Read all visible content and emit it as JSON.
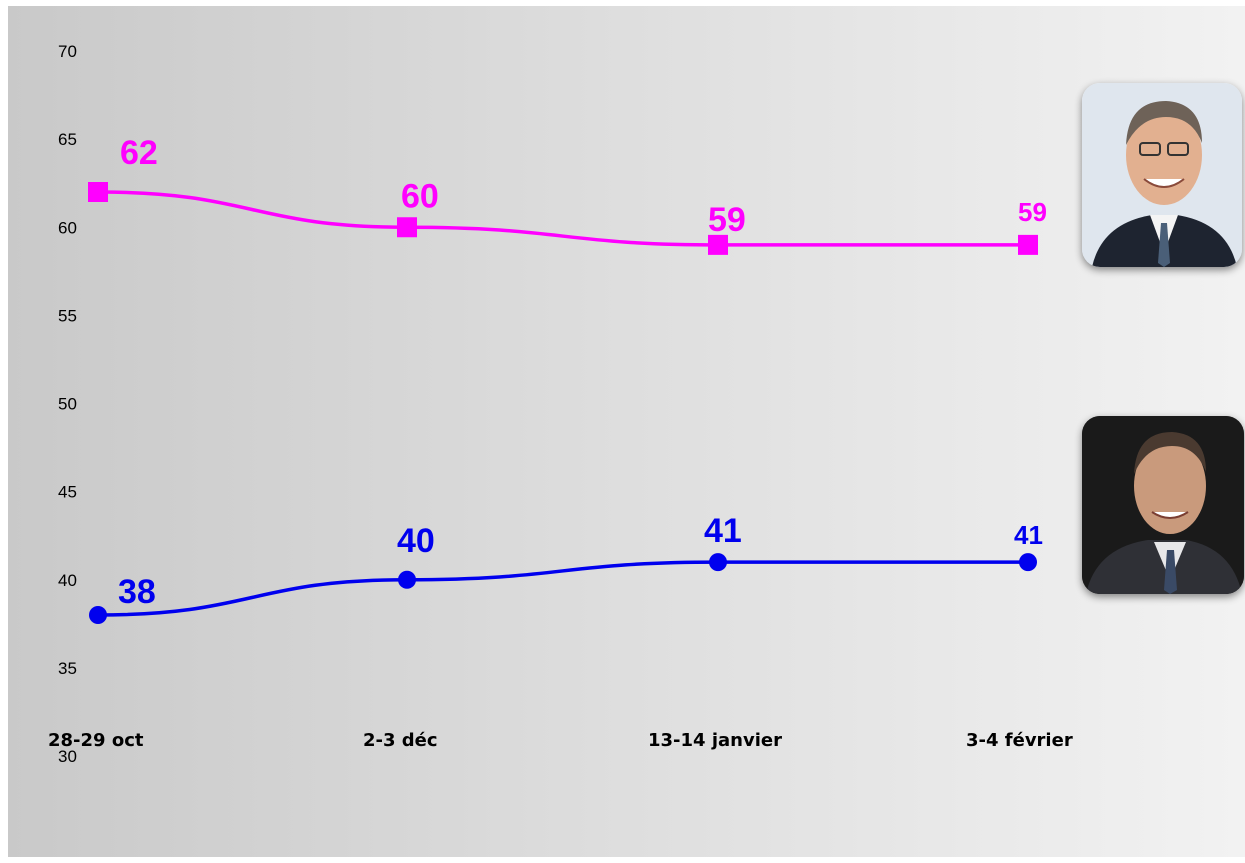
{
  "chart_data": {
    "type": "line",
    "categories": [
      "28-29 oct",
      "2-3 déc",
      "13-14 janvier",
      "3-4 février"
    ],
    "yticks": [
      30,
      35,
      40,
      45,
      50,
      55,
      60,
      65,
      70
    ],
    "ylim": [
      30,
      70
    ],
    "grid": false,
    "series": [
      {
        "values": [
          62,
          60,
          59,
          59
        ],
        "labels": [
          "62",
          "60",
          "59",
          "59"
        ],
        "color": "#ff00ff",
        "marker": "square"
      },
      {
        "values": [
          38,
          40,
          41,
          41
        ],
        "labels": [
          "38",
          "40",
          "41",
          "41"
        ],
        "color": "#0000ee",
        "marker": "circle"
      }
    ]
  },
  "photos": [
    {
      "name": "photo-hollande",
      "series": 0,
      "icon": "portrait-man-suit-tie"
    },
    {
      "name": "photo-sarkozy",
      "series": 1,
      "icon": "portrait-man-suit-tie-dark-background"
    }
  ]
}
